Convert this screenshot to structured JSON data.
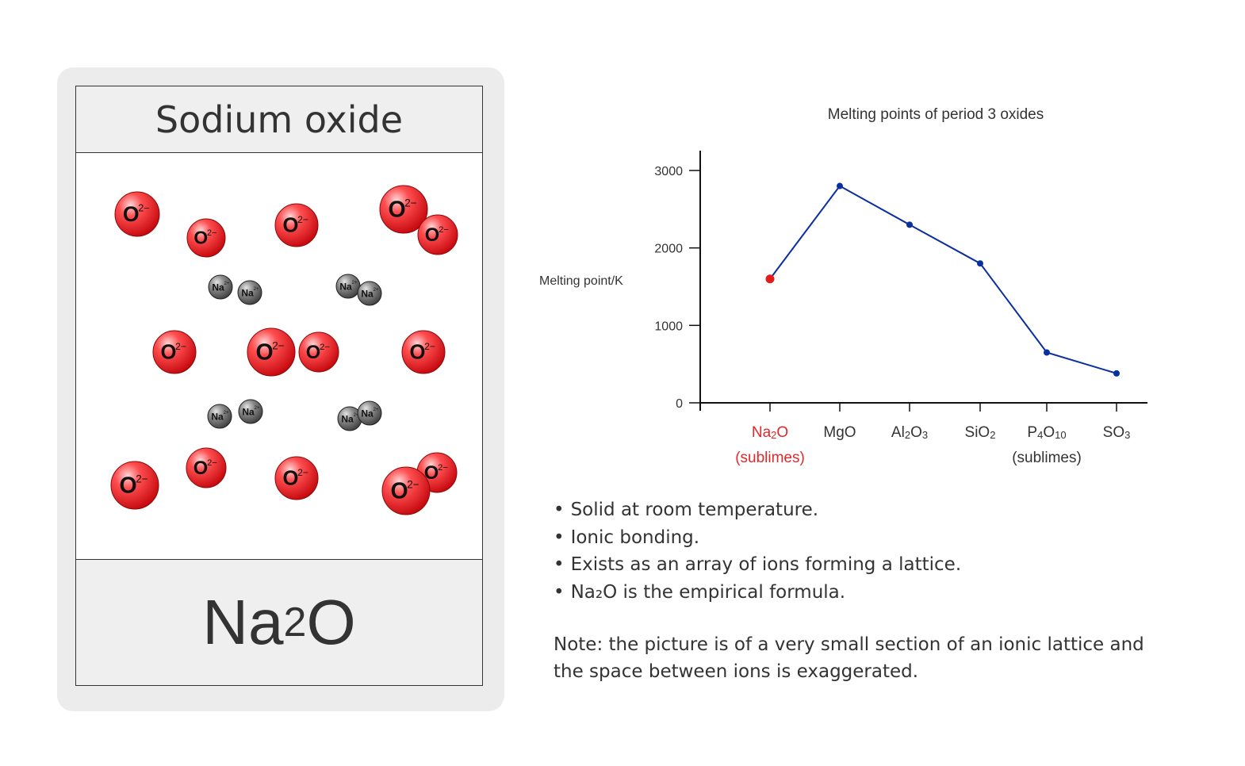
{
  "card": {
    "title": "Sodium oxide",
    "formula": {
      "main": "Na",
      "sub": "2",
      "tail": "O"
    },
    "oxide_ion_label": "O",
    "oxide_ion_charge": "2−",
    "sodium_ion_label": "Na",
    "sodium_ion_charge": "2+"
  },
  "chart_data": {
    "type": "line",
    "title": "Melting points of period 3 oxides",
    "ylabel": "Melting point/K",
    "xlabel": "",
    "ylim": [
      0,
      3000
    ],
    "yticks": [
      0,
      1000,
      2000,
      3000
    ],
    "categories": [
      "Na2O",
      "MgO",
      "Al2O3",
      "SiO2",
      "P4O10",
      "SO3"
    ],
    "series": [
      {
        "values": [
          1600,
          2800,
          2300,
          1800,
          650,
          380
        ]
      }
    ],
    "category_notes": [
      "(sublimes)",
      "",
      "",
      "",
      "(sublimes)",
      ""
    ],
    "highlight_category": "Na2O",
    "colors": {
      "line": "#0a2f9e",
      "highlight": "#e31b1b"
    }
  },
  "bullets": [
    "Solid at room temperature.",
    "Ionic bonding.",
    "Exists as an array of ions forming a lattice.",
    "Na₂O is the empirical formula."
  ],
  "note": "Note: the picture is of a very small section of an ionic lattice and the space between ions is exaggerated."
}
